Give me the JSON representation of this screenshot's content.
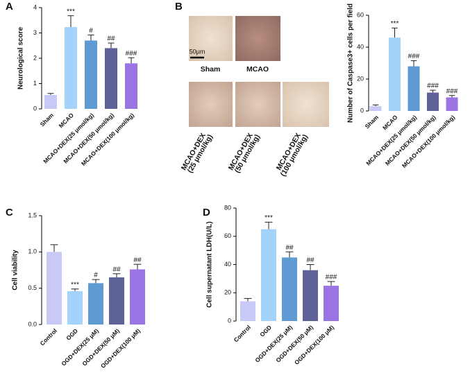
{
  "chart_data": [
    {
      "type": "bar",
      "panel": "A",
      "y_label": "Neurological score",
      "categories": [
        "Sham",
        "MCAO",
        "MCAO+DEX(25 μmol/kg)",
        "MCAO+DEX(50 μmol/kg)",
        "MCAO+DEX(100 μmol/kg)"
      ],
      "values": [
        0.55,
        3.23,
        2.7,
        2.4,
        1.8
      ],
      "errors": [
        0.06,
        0.45,
        0.22,
        0.2,
        0.22
      ],
      "annotations": [
        null,
        "***",
        "#",
        "##",
        "###"
      ],
      "colors": [
        "#c9c9f7",
        "#a3d2fa",
        "#5f9ad3",
        "#5f6296",
        "#9a74e2"
      ],
      "ylim": [
        0,
        4
      ],
      "yticks": [
        0,
        1,
        2,
        3,
        4
      ]
    },
    {
      "type": "bar",
      "panel": "B",
      "y_label": "Number of Caspase3+ cells per field",
      "categories": [
        "Sham",
        "MCAO",
        "MCAO+DEX(25 μmol/kg)",
        "MCAO+DEX(50 μmol/kg)",
        "MCAO+DEX(100 μmol/kg)"
      ],
      "values": [
        3,
        46,
        28,
        11.5,
        8.5
      ],
      "errors": [
        0.8,
        6,
        3.5,
        1.5,
        1.2
      ],
      "annotations": [
        null,
        "***",
        "###",
        "###",
        "###"
      ],
      "colors": [
        "#c9c9f7",
        "#a3d2fa",
        "#5f9ad3",
        "#5f6296",
        "#9a74e2"
      ],
      "ylim": [
        0,
        60
      ],
      "yticks": [
        0,
        20,
        40,
        60
      ]
    },
    {
      "type": "bar",
      "panel": "C",
      "y_label": "Cell viability",
      "categories": [
        "Control",
        "OGD",
        "OGD+DEX(25 μM)",
        "OGD+DEX(50 μM)",
        "OGD+DEX(100 μM)"
      ],
      "values": [
        1.0,
        0.46,
        0.57,
        0.65,
        0.76
      ],
      "errors": [
        0.1,
        0.03,
        0.05,
        0.05,
        0.07
      ],
      "annotations": [
        null,
        "***",
        "#",
        "##",
        "##"
      ],
      "colors": [
        "#c9c9f7",
        "#a3d2fa",
        "#5f9ad3",
        "#5f6296",
        "#9a74e2"
      ],
      "ylim": [
        0,
        1.5
      ],
      "yticks": [
        {
          "value": 0,
          "label": "0.0"
        },
        0.5,
        {
          "value": 1,
          "label": "1.0"
        },
        1.5
      ]
    },
    {
      "type": "bar",
      "panel": "D",
      "y_label": "Cell supernatant LDH(U/L)",
      "categories": [
        "Control",
        "OGD",
        "OGD+DEX(25 μM)",
        "OGD+DEX(50 μM)",
        "OGD+DEX(100 μM)"
      ],
      "values": [
        14,
        65,
        45,
        36,
        25
      ],
      "errors": [
        2,
        5,
        4,
        4,
        3
      ],
      "annotations": [
        null,
        "***",
        "##",
        "##",
        "###"
      ],
      "colors": [
        "#c9c9f7",
        "#a3d2fa",
        "#5f9ad3",
        "#5f6296",
        "#9a74e2"
      ],
      "ylim": [
        0,
        80
      ],
      "yticks": [
        0,
        20,
        40,
        60,
        80
      ]
    }
  ],
  "micrographs": {
    "scale_bar": "50μm",
    "top_labels": [
      "Sham",
      "MCAO"
    ],
    "bottom_labels": [
      [
        "MCAO+DEX",
        "(25 μmol/kg)"
      ],
      [
        "MCAO+DEX",
        "(50 μmol/kg)"
      ],
      [
        "MCAO+DEX",
        "(100 μmol/kg)"
      ]
    ]
  }
}
